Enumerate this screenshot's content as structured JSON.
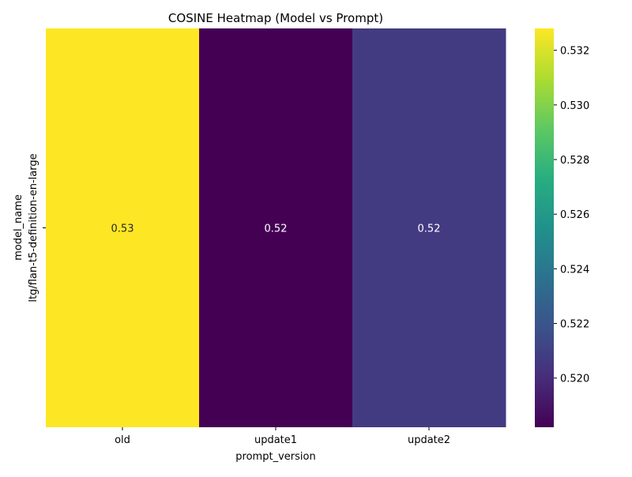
{
  "chart_data": {
    "type": "heatmap",
    "title": "COSINE Heatmap (Model vs Prompt)",
    "xlabel": "prompt_version",
    "ylabel": "model_name",
    "x_categories": [
      "old",
      "update1",
      "update2"
    ],
    "y_categories": [
      "ltg/flan-t5-definition-en-large"
    ],
    "values": [
      [
        0.5328,
        0.5182,
        0.5207
      ]
    ],
    "cell_labels": [
      [
        "0.53",
        "0.52",
        "0.52"
      ]
    ],
    "colormap": "viridis",
    "colorbar": {
      "min": 0.5182,
      "max": 0.5328,
      "ticks": [
        0.52,
        0.522,
        0.524,
        0.526,
        0.528,
        0.53,
        0.532
      ],
      "tick_labels": [
        "0.520",
        "0.522",
        "0.524",
        "0.526",
        "0.528",
        "0.530",
        "0.532"
      ]
    },
    "grid": false
  }
}
